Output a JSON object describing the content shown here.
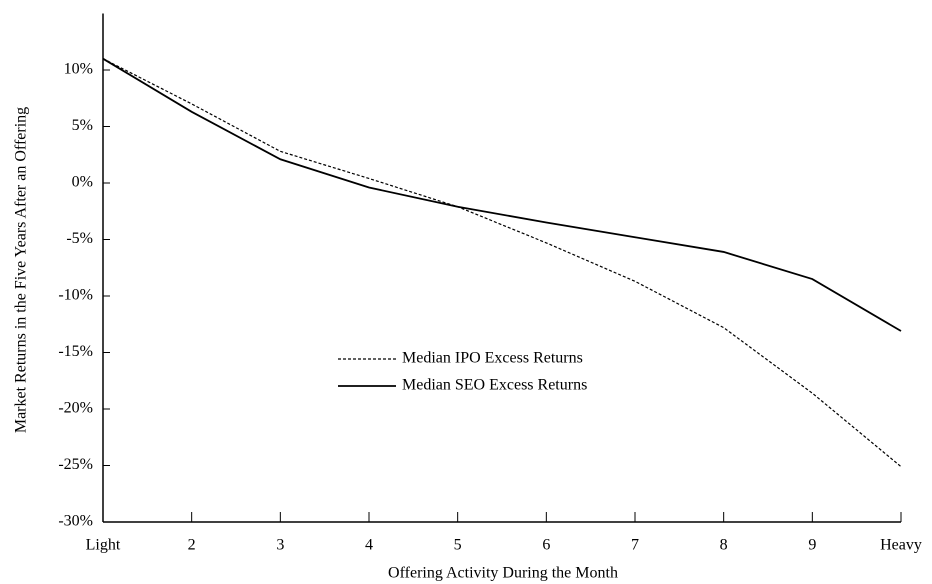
{
  "chart_data": {
    "type": "line",
    "x_label": "Offering Activity During the Month",
    "y_label": "Market Returns in the Five Years After an Offering",
    "categories": [
      "Light",
      "2",
      "3",
      "4",
      "5",
      "6",
      "7",
      "8",
      "9",
      "Heavy"
    ],
    "series": [
      {
        "name": "Median IPO Excess Returns",
        "color": "#000000",
        "linestyle": "dotted",
        "values": [
          11,
          7.0,
          2.8,
          0.4,
          -2.1,
          -5.3,
          -8.7,
          -12.8,
          -18.6,
          -25.1
        ]
      },
      {
        "name": "Median SEO Excess Returns",
        "color": "#000000",
        "linestyle": "solid",
        "values": [
          11,
          6.3,
          2.1,
          -0.4,
          -2.1,
          -3.5,
          -4.8,
          -6.1,
          -8.5,
          -13.1
        ]
      }
    ],
    "ylim": [
      -30,
      15
    ],
    "yticks": [
      {
        "value": -30,
        "label": "-30%"
      },
      {
        "value": -25,
        "label": "-25%"
      },
      {
        "value": -20,
        "label": "-20%"
      },
      {
        "value": -15,
        "label": "-15%"
      },
      {
        "value": -10,
        "label": "-10%"
      },
      {
        "value": -5,
        "label": "-5%"
      },
      {
        "value": 0,
        "label": "0%"
      },
      {
        "value": 5,
        "label": "5%"
      },
      {
        "value": 10,
        "label": "10%"
      }
    ],
    "grid": false
  }
}
